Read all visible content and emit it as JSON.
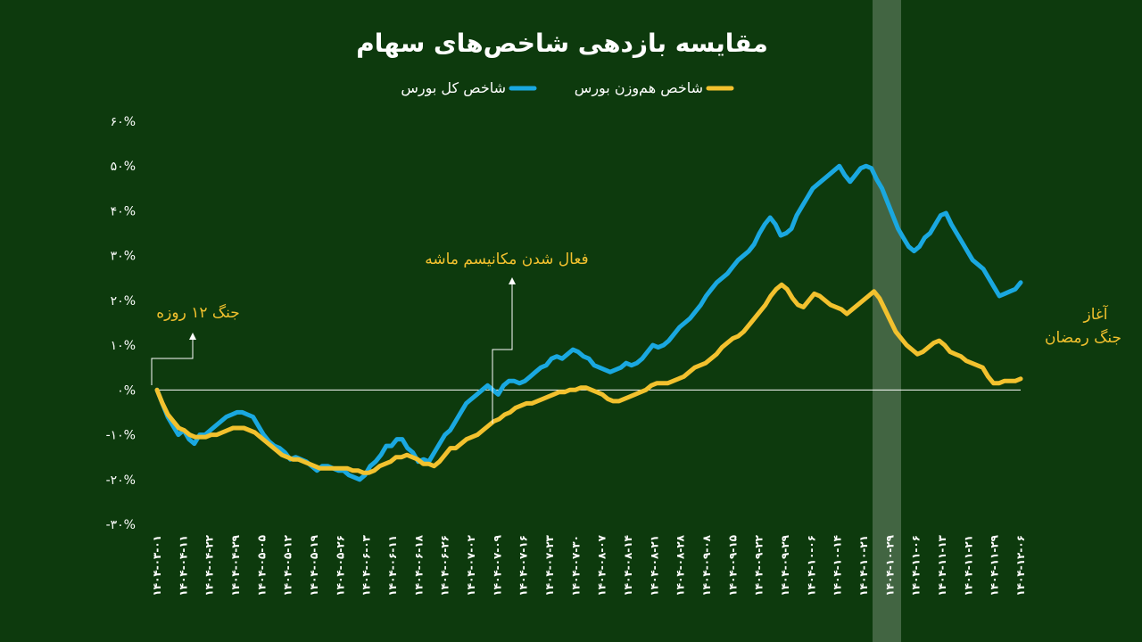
{
  "chart_data": {
    "type": "line",
    "title": "مقایسه بازدهی شاخص‌های سهام",
    "legend_position": "top-center",
    "grid": false,
    "ylim": [
      -30,
      60
    ],
    "y_ticks": [
      60,
      50,
      40,
      30,
      20,
      10,
      0,
      -10,
      -20,
      -30
    ],
    "y_tick_labels": [
      "۶۰%",
      "۵۰%",
      "۴۰%",
      "۳۰%",
      "۲۰%",
      "۱۰%",
      "۰%",
      "-۱۰%",
      "-۲۰%",
      "-۳۰%"
    ],
    "x_tick_labels": [
      "۱۴۰۴-۰۳-۰۱",
      "۱۴۰۴-۰۴-۱۱",
      "۱۴۰۴-۰۴-۲۲",
      "۱۴۰۴-۰۴-۲۹",
      "۱۴۰۴-۰۵-۰۵",
      "۱۴۰۴-۰۵-۱۲",
      "۱۴۰۴-۰۵-۱۹",
      "۱۴۰۴-۰۵-۲۶",
      "۱۴۰۴-۰۶-۰۳",
      "۱۴۰۴-۰۶-۱۱",
      "۱۴۰۴-۰۶-۱۸",
      "۱۴۰۴-۰۶-۲۶",
      "۱۴۰۴-۰۷-۰۲",
      "۱۴۰۴-۰۷-۰۹",
      "۱۴۰۴-۰۷-۱۶",
      "۱۴۰۴-۰۷-۲۳",
      "۱۴۰۴-۰۷-۳۰",
      "۱۴۰۴-۰۸-۰۷",
      "۱۴۰۴-۰۸-۱۴",
      "۱۴۰۴-۰۸-۲۱",
      "۱۴۰۴-۰۸-۲۸",
      "۱۴۰۴-۰۹-۰۸",
      "۱۴۰۴-۰۹-۱۵",
      "۱۴۰۴-۰۹-۲۲",
      "۱۴۰۴-۰۹-۲۹",
      "۱۴۰۴-۱۰-۰۶",
      "۱۴۰۴-۱۰-۱۴",
      "۱۴۰۴-۱۰-۲۱",
      "۱۴۰۴-۱۰-۲۹",
      "۱۴۰۴-۱۱-۰۶",
      "۱۴۰۴-۱۱-۱۳",
      "۱۴۰۴-۱۱-۲۱",
      "۱۴۰۴-۱۱-۲۹",
      "۱۴۰۴-۱۲-۰۶"
    ],
    "series": [
      {
        "name": "شاخص کل بورس",
        "color": "#1aa8e0",
        "values": [
          0,
          -3,
          -6,
          -8,
          -10,
          -9,
          -11,
          -12,
          -10,
          -10,
          -9,
          -8,
          -7,
          -6,
          -5.5,
          -5,
          -5,
          -5.5,
          -6,
          -8,
          -10,
          -11.5,
          -12.5,
          -13,
          -14,
          -15.5,
          -15,
          -15.5,
          -16,
          -17,
          -18,
          -17,
          -17,
          -17.5,
          -18,
          -18,
          -19,
          -19.5,
          -20,
          -19,
          -17,
          -16,
          -14.5,
          -12.5,
          -12.5,
          -11,
          -11,
          -13,
          -14,
          -16,
          -15.5,
          -16,
          -14,
          -12,
          -10,
          -9,
          -7,
          -5,
          -3,
          -2,
          -1,
          0,
          1,
          0,
          -1,
          1,
          2,
          2,
          1.5,
          2,
          3,
          4,
          5,
          5.5,
          7,
          7.5,
          7,
          8,
          9,
          8.5,
          7.5,
          7,
          5.5,
          5,
          4.5,
          4,
          4.5,
          5,
          6,
          5.5,
          6,
          7,
          8.5,
          10,
          9.5,
          10,
          11,
          12.5,
          14,
          15,
          16,
          17.5,
          19,
          21,
          22.5,
          24,
          25,
          26,
          27.5,
          29,
          30,
          31,
          32.5,
          35,
          37,
          38.5,
          37,
          34.5,
          35,
          36,
          39,
          41,
          43,
          45,
          46,
          47,
          48,
          49,
          50,
          48,
          46.5,
          48,
          49.5,
          50,
          49.5,
          47,
          45,
          42,
          39,
          36,
          34,
          32,
          31,
          32,
          34,
          35,
          37,
          39,
          39.5,
          37,
          35,
          33,
          31,
          29,
          28,
          27,
          25,
          23,
          21,
          21.5,
          22,
          22.5,
          24
        ]
      },
      {
        "name": "شاخص هم‌وزن بورس",
        "color": "#f2c12e",
        "values": [
          0,
          -3,
          -5.5,
          -7,
          -8.5,
          -9,
          -10,
          -10.5,
          -10.5,
          -10.5,
          -10,
          -10,
          -9.5,
          -9,
          -8.5,
          -8.5,
          -8.5,
          -9,
          -9.5,
          -10.5,
          -11.5,
          -12.5,
          -13.5,
          -14.5,
          -15,
          -15.5,
          -15.5,
          -16,
          -16.5,
          -17,
          -17.5,
          -17.5,
          -17.5,
          -17.5,
          -17.5,
          -17.5,
          -18,
          -18,
          -18.5,
          -18.5,
          -18,
          -17,
          -16.5,
          -16,
          -15,
          -15,
          -14.5,
          -15,
          -15.5,
          -16.5,
          -16.5,
          -17,
          -16,
          -14.5,
          -13,
          -13,
          -12,
          -11,
          -10.5,
          -10,
          -9,
          -8,
          -7,
          -6.5,
          -5.5,
          -5,
          -4,
          -3.5,
          -3,
          -3,
          -2.5,
          -2,
          -1.5,
          -1,
          -0.5,
          -0.5,
          0,
          0,
          0.5,
          0.5,
          0,
          -0.5,
          -1,
          -2,
          -2.5,
          -2.5,
          -2,
          -1.5,
          -1,
          -0.5,
          0,
          1,
          1.5,
          1.5,
          1.5,
          2,
          2.5,
          3,
          4,
          5,
          5.5,
          6,
          7,
          8,
          9.5,
          10.5,
          11.5,
          12,
          13,
          14.5,
          16,
          17.5,
          19,
          21,
          22.5,
          23.5,
          22.5,
          20.5,
          19,
          18.5,
          20,
          21.5,
          21,
          20,
          19,
          18.5,
          18,
          17,
          18,
          19,
          20,
          21,
          22,
          20.5,
          18,
          15.5,
          13,
          11.5,
          10,
          9,
          8,
          8.5,
          9.5,
          10.5,
          11,
          10,
          8.5,
          8,
          7.5,
          6.5,
          6,
          5.5,
          5,
          3,
          1.5,
          1.5,
          2,
          2,
          2,
          2.5
        ]
      }
    ],
    "vertical_band_x_label": "۱۴۰۴-۱۰-۲۹",
    "annotations": {
      "war12": "جنگ ۱۲ روزه",
      "mechanism": "فعال شدن مکانیسم ماشه",
      "ramadan_line1": "آغاز",
      "ramadan_line2": "جنگ رمضان"
    }
  },
  "colors": {
    "background": "#0d3a0d",
    "band": "#ffffff",
    "accent": "#f2c12e"
  }
}
